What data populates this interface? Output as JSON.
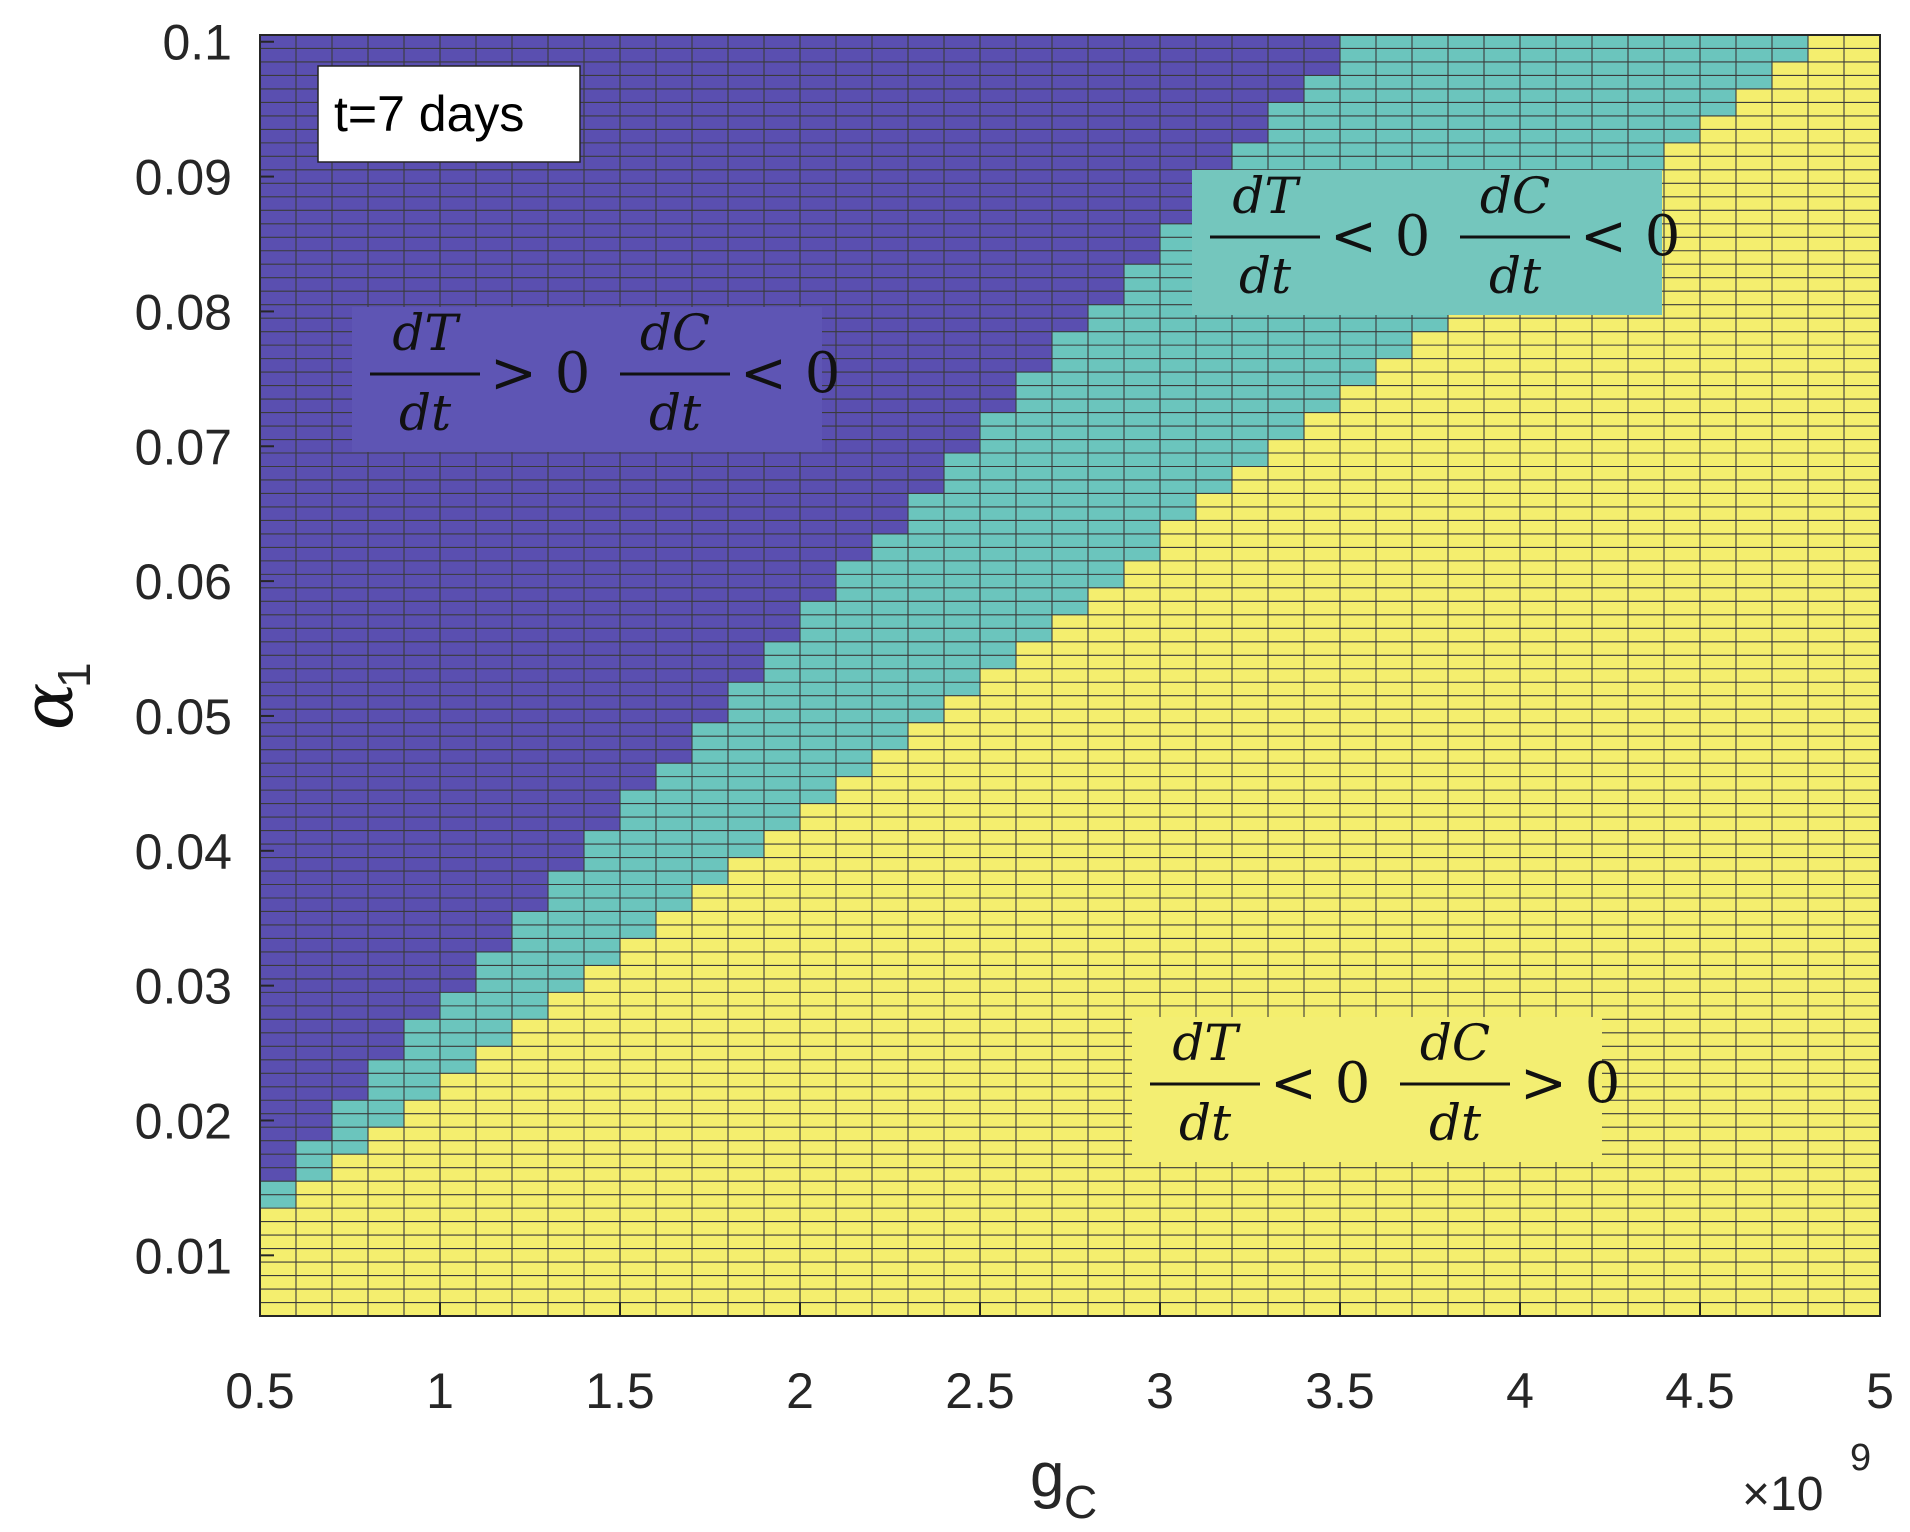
{
  "chart_data": {
    "type": "heatmap",
    "title": "",
    "xlabel": "g",
    "xlabel_subscript": "C",
    "ylabel": "α",
    "ylabel_subscript": "1",
    "x_multiplier_label": "×10",
    "x_multiplier_exponent": "9",
    "xlim": [
      0.5,
      5.0
    ],
    "ylim": [
      0.0055,
      0.1005
    ],
    "x_ticks": [
      0.5,
      1.0,
      1.5,
      2.0,
      2.5,
      3.0,
      3.5,
      4.0,
      4.5,
      5.0
    ],
    "x_tick_labels": [
      "0.5",
      "1",
      "1.5",
      "2",
      "2.5",
      "3",
      "3.5",
      "4",
      "4.5",
      "5"
    ],
    "y_ticks": [
      0.01,
      0.02,
      0.03,
      0.04,
      0.05,
      0.06,
      0.07,
      0.08,
      0.09,
      0.1
    ],
    "y_tick_labels": [
      "0.01",
      "0.02",
      "0.03",
      "0.04",
      "0.05",
      "0.06",
      "0.07",
      "0.08",
      "0.09",
      "0.1"
    ],
    "grid_x_range": [
      0.5,
      5.0
    ],
    "grid_x_columns": 45,
    "grid_y_values_range": [
      0.006,
      0.1
    ],
    "grid_y_rows": 95,
    "region_boundaries": {
      "description": "alpha_1 thresholds as linear functions of g_C (in units of 1e9): cells with alpha_1 below lower are yellow, between lower and upper are teal, above upper are purple",
      "lower": {
        "slope": 0.02033,
        "intercept": 0.00202
      },
      "upper": {
        "slope": 0.02837,
        "intercept": 0.0001
      }
    },
    "regions": [
      {
        "name": "dT/dt > 0, dC/dt < 0",
        "color": "#5a4fb0"
      },
      {
        "name": "dT/dt < 0, dC/dt < 0",
        "color": "#6bc5bd"
      },
      {
        "name": "dT/dt < 0, dC/dt > 0",
        "color": "#f4ee6e"
      }
    ],
    "annotations": [
      {
        "text": "t=7 days",
        "type": "box"
      },
      {
        "text": "dT/dt > 0   dC/dt < 0",
        "region": 0,
        "t1_num": "dT",
        "t1_den": "dt",
        "t1_op": "> 0",
        "t2_num": "dC",
        "t2_den": "dt",
        "t2_op": "< 0",
        "bg": "#5e55b4"
      },
      {
        "text": "dT/dt < 0   dC/dt < 0",
        "region": 1,
        "t1_num": "dT",
        "t1_den": "dt",
        "t1_op": "< 0",
        "t2_num": "dC",
        "t2_den": "dt",
        "t2_op": "< 0",
        "bg": "#74c6bd"
      },
      {
        "text": "dT/dt < 0   dC/dt > 0",
        "region": 2,
        "t1_num": "dT",
        "t1_den": "dt",
        "t1_op": "< 0",
        "t2_num": "dC",
        "t2_den": "dt",
        "t2_op": "> 0",
        "bg": "#f3ee72"
      }
    ],
    "grid_line_color": "#3b3b3b"
  }
}
